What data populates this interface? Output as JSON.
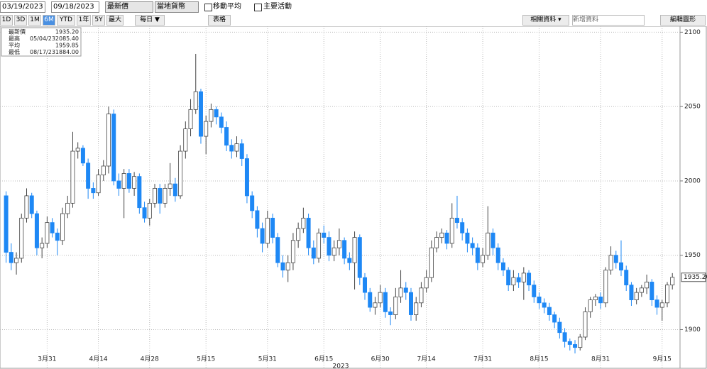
{
  "toolbar": {
    "start_date": "03/19/2023",
    "end_date": "09/18/2023",
    "field": "最新價",
    "currency": "當地貨幣",
    "moving_average": "移動平均",
    "key_events": "主要活動",
    "periods": [
      "1D",
      "3D",
      "1M",
      "6M",
      "YTD",
      "1年",
      "5Y",
      "最大"
    ],
    "frequency": "每日 ▼",
    "table": "表格",
    "related": "相關資料 ▾",
    "add_data": "新增資料",
    "edit": "編輯圖形"
  },
  "legend": [
    {
      "label": "最新價",
      "value": "1935.20"
    },
    {
      "label": "最高",
      "date": "05/04/23",
      "value": "2085.40"
    },
    {
      "label": "平均",
      "value": "1959.85"
    },
    {
      "label": "最低",
      "date": "08/17/23",
      "value": "1884.00"
    }
  ],
  "chart_data": {
    "type": "candlestick",
    "xlabel": "2023",
    "last_price_label": "1935.20",
    "up_color": "#ffffff",
    "down_color": "#1e88f5",
    "ylim": [
      1874,
      2104
    ],
    "yticks": [
      1900,
      1950,
      2000,
      2050,
      2100
    ],
    "grid": true,
    "categories": [
      null,
      null,
      null,
      null,
      null,
      null,
      null,
      null,
      "3月31",
      null,
      null,
      null,
      null,
      null,
      null,
      null,
      null,
      null,
      "4月14",
      null,
      null,
      null,
      null,
      null,
      null,
      null,
      null,
      null,
      "4月28",
      null,
      null,
      null,
      null,
      null,
      null,
      null,
      null,
      null,
      null,
      "5月15",
      null,
      null,
      null,
      null,
      null,
      null,
      null,
      null,
      null,
      null,
      null,
      "5月31",
      null,
      null,
      null,
      null,
      null,
      null,
      null,
      null,
      null,
      null,
      "6月15",
      null,
      null,
      null,
      null,
      null,
      null,
      null,
      null,
      null,
      null,
      "6月30",
      null,
      null,
      null,
      null,
      null,
      null,
      null,
      null,
      "7月14",
      null,
      null,
      null,
      null,
      null,
      null,
      null,
      null,
      null,
      null,
      "7月31",
      null,
      null,
      null,
      null,
      null,
      null,
      null,
      null,
      null,
      null,
      "8月15",
      null,
      null,
      null,
      null,
      null,
      null,
      null,
      null,
      null,
      null,
      null,
      "8月31",
      null,
      null,
      null,
      null,
      null,
      null,
      null,
      null,
      null,
      null,
      null,
      "9月15",
      null,
      null
    ],
    "ohlc": [
      [
        1990,
        1993,
        1945,
        1952
      ],
      [
        1952,
        1958,
        1940,
        1945
      ],
      [
        1945,
        1952,
        1937,
        1948
      ],
      [
        1948,
        1978,
        1945,
        1975
      ],
      [
        1975,
        1995,
        1972,
        1990
      ],
      [
        1990,
        1992,
        1975,
        1978
      ],
      [
        1978,
        1980,
        1950,
        1955
      ],
      [
        1955,
        1962,
        1948,
        1958
      ],
      [
        1958,
        1976,
        1955,
        1972
      ],
      [
        1972,
        1975,
        1962,
        1965
      ],
      [
        1965,
        1968,
        1950,
        1960
      ],
      [
        1960,
        1982,
        1957,
        1978
      ],
      [
        1978,
        1990,
        1975,
        1985
      ],
      [
        1985,
        2033,
        1982,
        2020
      ],
      [
        2020,
        2026,
        2015,
        2022
      ],
      [
        2022,
        2024,
        2010,
        2012
      ],
      [
        2012,
        2015,
        1988,
        1995
      ],
      [
        1995,
        1999,
        1988,
        1992
      ],
      [
        1992,
        2008,
        1990,
        2004
      ],
      [
        2004,
        2014,
        2000,
        2010
      ],
      [
        2010,
        2050,
        2005,
        2045
      ],
      [
        2045,
        2048,
        1997,
        2000
      ],
      [
        2000,
        2005,
        1990,
        1995
      ],
      [
        1995,
        2008,
        1975,
        2005
      ],
      [
        2005,
        2008,
        1992,
        1995
      ],
      [
        1995,
        2006,
        1990,
        2003
      ],
      [
        2003,
        2005,
        1978,
        1982
      ],
      [
        1982,
        1986,
        1972,
        1975
      ],
      [
        1975,
        1988,
        1970,
        1985
      ],
      [
        1985,
        1998,
        1982,
        1995
      ],
      [
        1995,
        1998,
        1978,
        1985
      ],
      [
        1985,
        1998,
        1982,
        1995
      ],
      [
        1995,
        2012,
        1990,
        1998
      ],
      [
        1998,
        2002,
        1986,
        1990
      ],
      [
        1990,
        2024,
        1988,
        2020
      ],
      [
        2020,
        2040,
        2015,
        2035
      ],
      [
        2035,
        2055,
        2030,
        2048
      ],
      [
        2048,
        2085.4,
        2045,
        2060
      ],
      [
        2060,
        2062,
        2025,
        2030
      ],
      [
        2030,
        2044,
        2018,
        2040
      ],
      [
        2040,
        2052,
        2036,
        2048
      ],
      [
        2048,
        2050,
        2038,
        2043
      ],
      [
        2043,
        2046,
        2032,
        2036
      ],
      [
        2036,
        2040,
        2020,
        2024
      ],
      [
        2024,
        2028,
        2015,
        2020
      ],
      [
        2020,
        2030,
        2016,
        2025
      ],
      [
        2025,
        2028,
        2010,
        2015
      ],
      [
        2015,
        2018,
        1985,
        1990
      ],
      [
        1990,
        1993,
        1975,
        1980
      ],
      [
        1980,
        1983,
        1962,
        1968
      ],
      [
        1968,
        1972,
        1952,
        1958
      ],
      [
        1958,
        1980,
        1955,
        1975
      ],
      [
        1975,
        1978,
        1958,
        1962
      ],
      [
        1962,
        1965,
        1942,
        1945
      ],
      [
        1945,
        1950,
        1935,
        1940
      ],
      [
        1940,
        1950,
        1932,
        1945
      ],
      [
        1945,
        1965,
        1940,
        1960
      ],
      [
        1960,
        1972,
        1955,
        1968
      ],
      [
        1968,
        1982,
        1965,
        1975
      ],
      [
        1975,
        1978,
        1950,
        1955
      ],
      [
        1955,
        1960,
        1944,
        1948
      ],
      [
        1948,
        1968,
        1945,
        1965
      ],
      [
        1965,
        1970,
        1958,
        1962
      ],
      [
        1962,
        1966,
        1946,
        1950
      ],
      [
        1950,
        1960,
        1946,
        1955
      ],
      [
        1955,
        1968,
        1950,
        1960
      ],
      [
        1960,
        1962,
        1944,
        1948
      ],
      [
        1948,
        1952,
        1940,
        1945
      ],
      [
        1945,
        1966,
        1927,
        1962
      ],
      [
        1962,
        1964,
        1930,
        1935
      ],
      [
        1935,
        1938,
        1920,
        1925
      ],
      [
        1925,
        1928,
        1912,
        1915
      ],
      [
        1915,
        1922,
        1910,
        1918
      ],
      [
        1918,
        1930,
        1915,
        1925
      ],
      [
        1925,
        1928,
        1908,
        1912
      ],
      [
        1912,
        1915,
        1903,
        1910
      ],
      [
        1910,
        1928,
        1907,
        1922
      ],
      [
        1922,
        1940,
        1918,
        1928
      ],
      [
        1928,
        1932,
        1920,
        1925
      ],
      [
        1925,
        1928,
        1906,
        1910
      ],
      [
        1910,
        1922,
        1906,
        1918
      ],
      [
        1918,
        1932,
        1915,
        1928
      ],
      [
        1928,
        1940,
        1925,
        1935
      ],
      [
        1935,
        1960,
        1932,
        1955
      ],
      [
        1955,
        1966,
        1952,
        1962
      ],
      [
        1962,
        1968,
        1958,
        1965
      ],
      [
        1965,
        1967,
        1954,
        1958
      ],
      [
        1958,
        1985,
        1955,
        1975
      ],
      [
        1975,
        1990,
        1968,
        1972
      ],
      [
        1972,
        1975,
        1960,
        1965
      ],
      [
        1965,
        1968,
        1952,
        1958
      ],
      [
        1958,
        1962,
        1950,
        1955
      ],
      [
        1955,
        1958,
        1940,
        1945
      ],
      [
        1945,
        1955,
        1942,
        1950
      ],
      [
        1950,
        1983,
        1947,
        1965
      ],
      [
        1965,
        1968,
        1950,
        1955
      ],
      [
        1955,
        1958,
        1940,
        1945
      ],
      [
        1945,
        1948,
        1936,
        1940
      ],
      [
        1940,
        1942,
        1926,
        1930
      ],
      [
        1930,
        1940,
        1926,
        1935
      ],
      [
        1935,
        1938,
        1928,
        1932
      ],
      [
        1932,
        1942,
        1920,
        1938
      ],
      [
        1938,
        1940,
        1926,
        1930
      ],
      [
        1930,
        1933,
        1918,
        1922
      ],
      [
        1922,
        1925,
        1914,
        1918
      ],
      [
        1918,
        1921,
        1911,
        1915
      ],
      [
        1915,
        1918,
        1906,
        1910
      ],
      [
        1910,
        1912,
        1901,
        1905
      ],
      [
        1905,
        1908,
        1894,
        1898
      ],
      [
        1898,
        1901,
        1888,
        1892
      ],
      [
        1892,
        1894,
        1886,
        1890
      ],
      [
        1890,
        1893,
        1884,
        1888
      ],
      [
        1888,
        1897,
        1886,
        1895
      ],
      [
        1895,
        1915,
        1893,
        1912
      ],
      [
        1912,
        1922,
        1908,
        1920
      ],
      [
        1920,
        1924,
        1916,
        1922
      ],
      [
        1922,
        1925,
        1914,
        1918
      ],
      [
        1918,
        1942,
        1915,
        1940
      ],
      [
        1940,
        1956,
        1937,
        1950
      ],
      [
        1950,
        1953,
        1941,
        1945
      ],
      [
        1945,
        1960,
        1936,
        1940
      ],
      [
        1940,
        1943,
        1926,
        1930
      ],
      [
        1930,
        1932,
        1916,
        1920
      ],
      [
        1920,
        1928,
        1917,
        1925
      ],
      [
        1925,
        1930,
        1922,
        1928
      ],
      [
        1928,
        1937,
        1924,
        1932
      ],
      [
        1932,
        1934,
        1916,
        1920
      ],
      [
        1920,
        1923,
        1910,
        1915
      ],
      [
        1915,
        1920,
        1906,
        1918
      ],
      [
        1918,
        1932,
        1915,
        1930
      ],
      [
        1930,
        1938,
        1927,
        1935.2
      ]
    ]
  }
}
